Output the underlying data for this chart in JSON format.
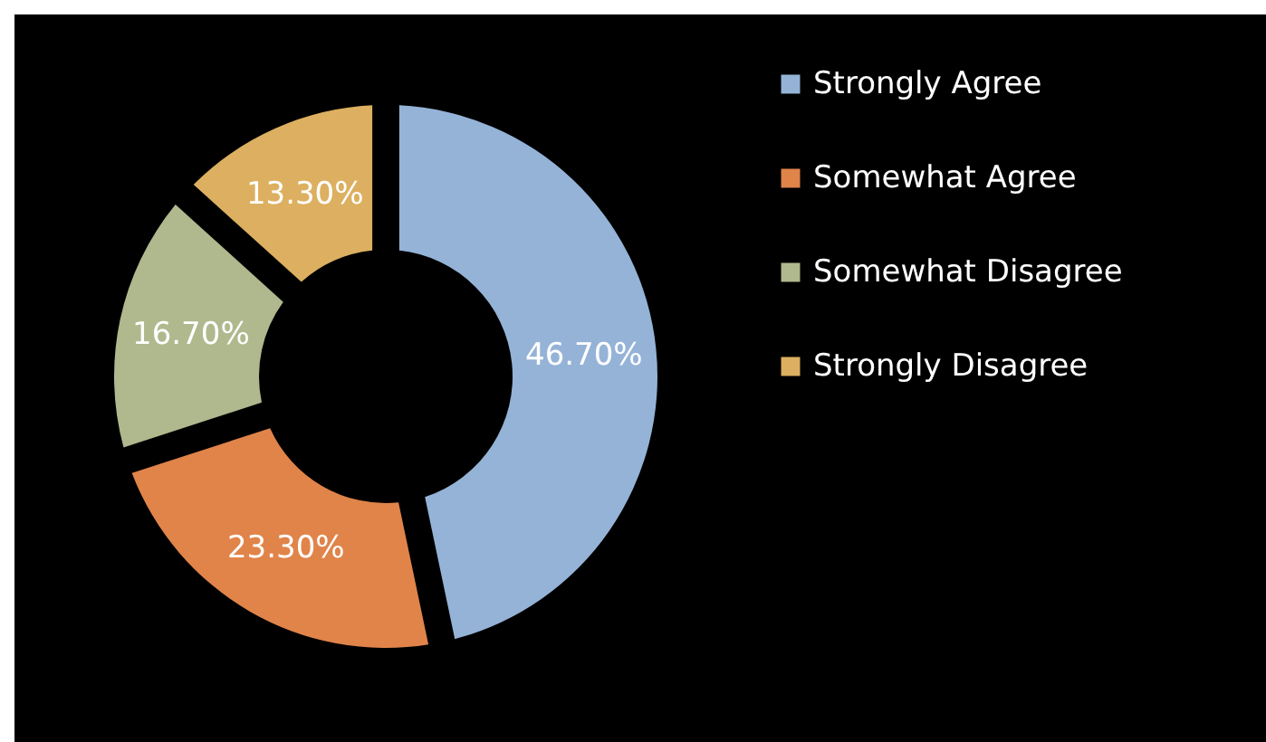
{
  "chart_data": {
    "type": "donut",
    "categories": [
      "Strongly Agree",
      "Somewhat Agree",
      "Somewhat Disagree",
      "Strongly Disagree"
    ],
    "values": [
      46.7,
      23.3,
      16.7,
      13.3
    ],
    "colors": [
      "#95b3d7",
      "#e0844a",
      "#b0b88e",
      "#dcb060"
    ],
    "value_labels": [
      "46.70%",
      "23.30%",
      "16.70%",
      "13.30%"
    ],
    "legend": "right"
  }
}
